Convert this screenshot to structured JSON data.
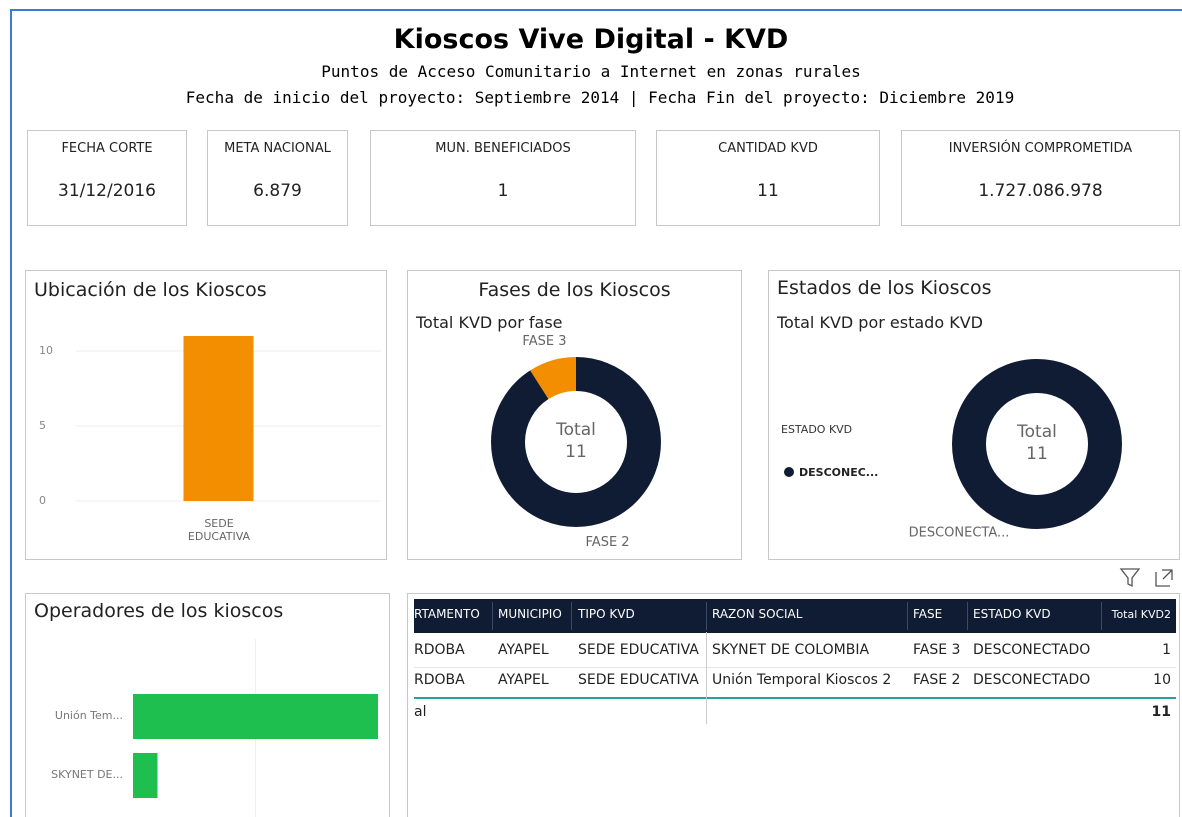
{
  "header": {
    "title": "Kioscos Vive Digital - KVD",
    "subtitle": "Puntos de Acceso Comunitario a Internet en zonas rurales",
    "dates": "Fecha de inicio del proyecto: Septiembre 2014 | Fecha Fin del proyecto: Diciembre 2019"
  },
  "kpis": [
    {
      "label": "FECHA CORTE",
      "value": "31/12/2016"
    },
    {
      "label": "META NACIONAL",
      "value": "6.879"
    },
    {
      "label": "MUN. BENEFICIADOS",
      "value": "1"
    },
    {
      "label": "CANTIDAD KVD",
      "value": "11"
    },
    {
      "label": "INVERSIÓN COMPROMETIDA",
      "value": "1.727.086.978"
    }
  ],
  "ubicacion": {
    "type": "bar",
    "title": "Ubicación de los Kioscos",
    "categories": [
      "SEDE EDUCATIVA"
    ],
    "values": [
      11
    ],
    "color": "#f28e00",
    "ylim": [
      0,
      12
    ],
    "yticks": [
      0,
      5,
      10
    ],
    "grid": true
  },
  "fases": {
    "type": "donut",
    "title": "Fases de los Kioscos",
    "subtitle": "Total KVD por fase",
    "center_label": "Total",
    "total": 11,
    "categories": [
      "FASE 2",
      "FASE 3"
    ],
    "values": [
      10,
      1
    ],
    "colors": [
      "#0f1c33",
      "#f28e00"
    ]
  },
  "estados": {
    "type": "donut",
    "title": "Estados de los Kioscos",
    "subtitle": "Total KVD por estado KVD",
    "center_label": "Total",
    "total": 11,
    "legend_title": "ESTADO KVD",
    "legend_labels": [
      "DESCONEC..."
    ],
    "categories": [
      "DESCONECTA..."
    ],
    "values": [
      11
    ],
    "colors": [
      "#0f1c33"
    ]
  },
  "operadores": {
    "type": "hbar",
    "title": "Operadores de los kioscos",
    "categories": [
      "Unión Tem...",
      "SKYNET DE..."
    ],
    "values": [
      10,
      1
    ],
    "color": "#1fbf4f",
    "xlim": [
      0,
      10
    ]
  },
  "table": {
    "columns": [
      "RTAMENTO",
      "MUNICIPIO",
      "TIPO KVD",
      "RAZON SOCIAL",
      "FASE",
      "ESTADO KVD",
      "Total KVD2"
    ],
    "rows": [
      [
        "RDOBA",
        "AYAPEL",
        "SEDE EDUCATIVA",
        "SKYNET DE COLOMBIA",
        "FASE 3",
        "DESCONECTADO",
        1
      ],
      [
        "RDOBA",
        "AYAPEL",
        "SEDE EDUCATIVA",
        "Unión Temporal Kioscos 2",
        "FASE 2",
        "DESCONECTADO",
        10
      ]
    ],
    "total_label": "al",
    "total": 11
  }
}
